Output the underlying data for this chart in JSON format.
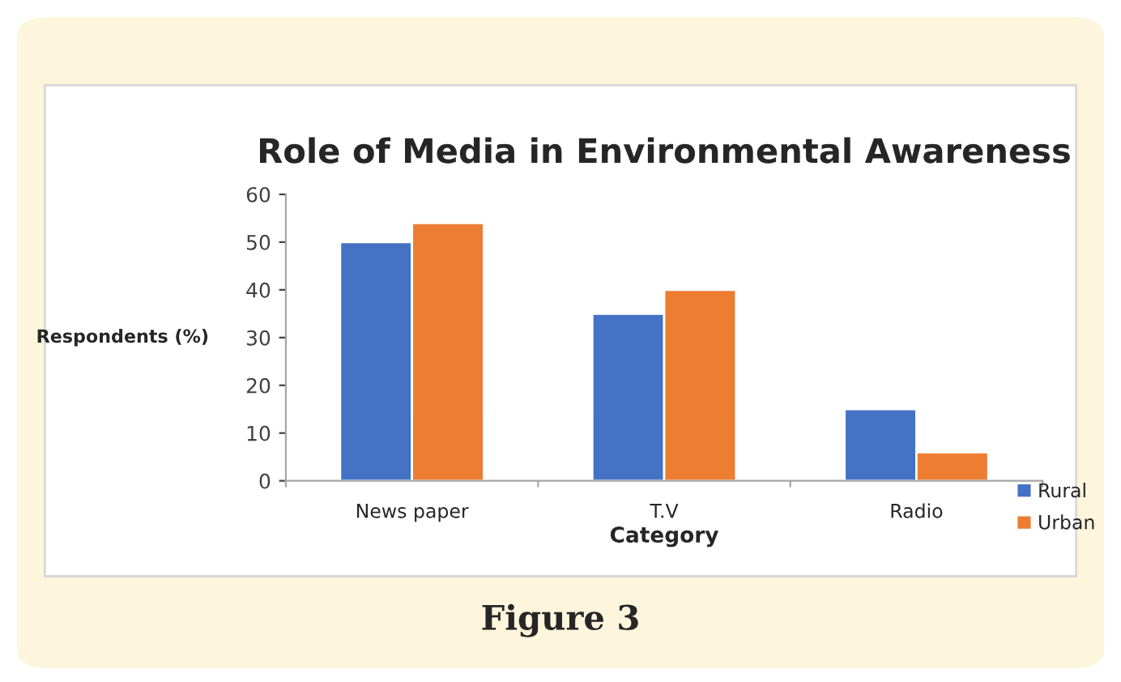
{
  "chart_data": {
    "type": "bar",
    "title": "Role of Media in Environmental Awareness",
    "xlabel": "Category",
    "ylabel": "Respondents (%)",
    "categories": [
      "News paper",
      "T.V",
      "Radio"
    ],
    "series": [
      {
        "name": "Rural",
        "color": "#4472c4",
        "values": [
          50,
          35,
          15
        ]
      },
      {
        "name": "Urban",
        "color": "#ed7d31",
        "values": [
          54,
          40,
          6
        ]
      }
    ],
    "ylim": [
      0,
      60
    ],
    "yticks": [
      0,
      10,
      20,
      30,
      40,
      50,
      60
    ],
    "grid": false,
    "legend": "bottom right",
    "annotations": [
      "Figure 3"
    ]
  }
}
